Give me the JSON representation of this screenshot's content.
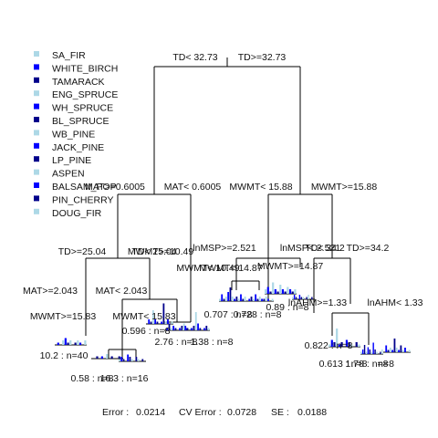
{
  "legend": [
    {
      "label": "SA_FIR",
      "color": "#add8e6"
    },
    {
      "label": "WHITE_BIRCH",
      "color": "#0000ff"
    },
    {
      "label": "TAMARACK",
      "color": "#00008b"
    },
    {
      "label": "ENG_SPRUCE",
      "color": "#add8e6"
    },
    {
      "label": "WH_SPRUCE",
      "color": "#0000ff"
    },
    {
      "label": "BL_SPRUCE",
      "color": "#00008b"
    },
    {
      "label": "WB_PINE",
      "color": "#add8e6"
    },
    {
      "label": "JACK_PINE",
      "color": "#0000ff"
    },
    {
      "label": "LP_PINE",
      "color": "#00008b"
    },
    {
      "label": "ASPEN",
      "color": "#add8e6"
    },
    {
      "label": "BALSAM_POP",
      "color": "#0000ff"
    },
    {
      "label": "PIN_CHERRY",
      "color": "#00008b"
    },
    {
      "label": "DOUG_FIR",
      "color": "#add8e6"
    }
  ],
  "splits": [
    {
      "id": "root-left",
      "text": "TD< 32.73"
    },
    {
      "id": "root-right",
      "text": "TD>=32.73"
    },
    {
      "id": "l-left",
      "text": "MAT>=0.6005"
    },
    {
      "id": "l-right",
      "text": "MAT< 0.6005"
    },
    {
      "id": "r-left",
      "text": "MWMT< 15.88"
    },
    {
      "id": "r-right",
      "text": "MWMT>=15.88"
    },
    {
      "id": "ll-left",
      "text": "TD>=25.04"
    },
    {
      "id": "ll-right",
      "text": "TD< 25.04"
    },
    {
      "id": "lr-left",
      "text": "MWMT>=10.49"
    },
    {
      "id": "lr-right",
      "text": "MWMT< 10.49"
    },
    {
      "id": "lll-left",
      "text": "MAT>=2.043"
    },
    {
      "id": "lll-right",
      "text": "MAT< 2.043"
    },
    {
      "id": "llll-left",
      "text": "MWMT>=15.83"
    },
    {
      "id": "llll-right",
      "text": "MWMT< 15.83"
    },
    {
      "id": "lrr-left",
      "text": "MWMT< 14.87"
    },
    {
      "id": "rl-left",
      "text": "lnMSP>=2.521"
    },
    {
      "id": "rl-right",
      "text": "lnMSP< 2.521"
    },
    {
      "id": "rl2-left",
      "text": "MWMT>=14.87"
    },
    {
      "id": "rr-left",
      "text": "TD< 34.2"
    },
    {
      "id": "rr-right",
      "text": "TD>=34.2"
    },
    {
      "id": "rrr-left",
      "text": "lnAHM>=1.33"
    },
    {
      "id": "rrr-right",
      "text": "lnAHM< 1.33"
    }
  ],
  "leaves": [
    {
      "id": "leaf-1",
      "text": "10.2 : n=40"
    },
    {
      "id": "leaf-2",
      "text": "0.58 : n=8"
    },
    {
      "id": "leaf-3",
      "text": "16.3 : n=16"
    },
    {
      "id": "leaf-4",
      "text": "0.596 : n=8"
    },
    {
      "id": "leaf-5",
      "text": "2.76 : n=8"
    },
    {
      "id": "leaf-6",
      "text": "1.38 : n=8"
    },
    {
      "id": "leaf-7",
      "text": "0.707 : n=8"
    },
    {
      "id": "leaf-8",
      "text": "0.728 : n=8"
    },
    {
      "id": "leaf-9",
      "text": "0.89 : n=8"
    },
    {
      "id": "leaf-10",
      "text": "0.822 : n=8"
    },
    {
      "id": "leaf-11",
      "text": "0.613 : n=8"
    },
    {
      "id": "leaf-12",
      "text": "1.78 : n=8"
    },
    {
      "id": "leaf-13",
      "text": "n=8"
    }
  ],
  "footer": {
    "error_label": "Error :",
    "error_value": "0.0214",
    "cv_label": "CV Error :",
    "cv_value": "0.0728",
    "se_label": "SE :",
    "se_value": "0.0188"
  }
}
